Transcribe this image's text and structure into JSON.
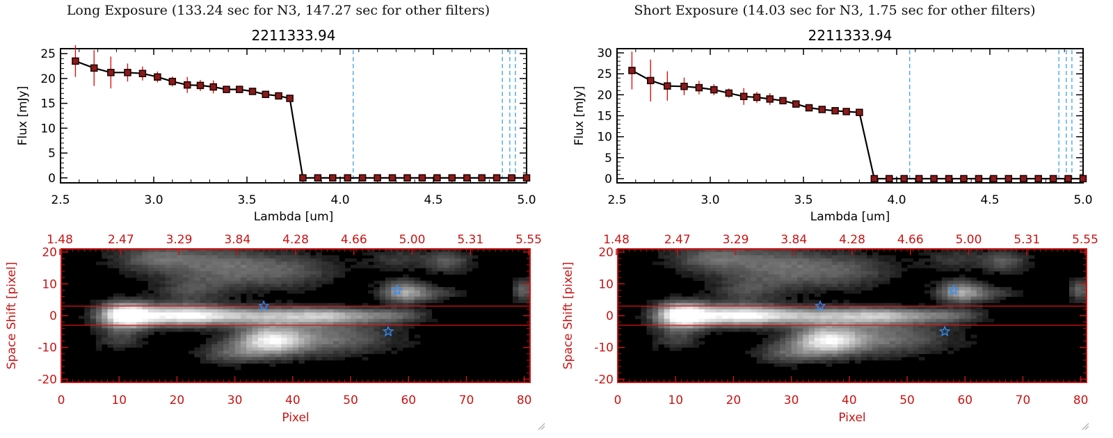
{
  "colors": {
    "axis_black": "#000000",
    "flux_marker": "#1a0000",
    "flux_fill": "#8b1a1a",
    "error_bar": "#e00000",
    "line_marker_blue": "#3aa0e8",
    "spectrum_axis_red": "#c81414",
    "star_blue": "#2f8fff",
    "image_bg": "#000000"
  },
  "chart_data": [
    {
      "type": "line",
      "panel": "left",
      "exposure_title": "Long Exposure (133.24 sec for N3, 147.27 sec for other filters)",
      "title": "2211333.94",
      "xlabel": "Lambda [um]",
      "ylabel": "Flux [mJy]",
      "xlim": [
        2.5,
        5.0
      ],
      "ylim": [
        -1,
        26
      ],
      "xticks": [
        2.5,
        3.0,
        3.5,
        4.0,
        4.5,
        5.0
      ],
      "xtick_labels": [
        "2.5",
        "3.0",
        "3.5",
        "4.0",
        "4.5",
        "5.0"
      ],
      "yticks": [
        0,
        5,
        10,
        15,
        20,
        25
      ],
      "ytick_labels": [
        "0",
        "5",
        "10",
        "15",
        "20",
        "25"
      ],
      "series": [
        {
          "name": "flux",
          "x": [
            2.58,
            2.68,
            2.77,
            2.86,
            2.94,
            3.02,
            3.1,
            3.18,
            3.25,
            3.32,
            3.39,
            3.46,
            3.53,
            3.6,
            3.67,
            3.73,
            3.8,
            3.88,
            3.96,
            4.04,
            4.12,
            4.2,
            4.28,
            4.36,
            4.44,
            4.52,
            4.6,
            4.68,
            4.76,
            4.84,
            4.92,
            5.0
          ],
          "y": [
            23.5,
            22.1,
            21.2,
            21.2,
            21.0,
            20.3,
            19.4,
            18.7,
            18.6,
            18.3,
            17.8,
            17.8,
            17.4,
            16.8,
            16.5,
            16.0,
            0,
            0,
            0,
            0,
            0,
            0,
            0,
            0,
            0,
            0,
            0,
            0,
            0,
            0,
            0,
            0
          ],
          "yerr": [
            3.2,
            3.6,
            3.2,
            1.8,
            1.4,
            1.1,
            1.0,
            1.6,
            1.1,
            1.3,
            0.7,
            0.5,
            0.4,
            0.4,
            0.3,
            0.3,
            0,
            0,
            0,
            0,
            0,
            0,
            0,
            0,
            0,
            0,
            0,
            0,
            0,
            0,
            0,
            0
          ]
        }
      ],
      "line_markers": [
        4.07,
        4.87,
        4.91,
        4.94
      ]
    },
    {
      "type": "heatmap",
      "panel": "left",
      "xlabel": "Pixel",
      "ylabel": "Space Shift [pixel]",
      "xlim": [
        0,
        81
      ],
      "ylim": [
        -21,
        21
      ],
      "xticks": [
        0,
        10,
        20,
        30,
        40,
        50,
        60,
        70,
        80
      ],
      "xtick_labels": [
        "0",
        "10",
        "20",
        "30",
        "40",
        "50",
        "60",
        "70",
        "80"
      ],
      "yticks": [
        -20,
        -10,
        0,
        10,
        20
      ],
      "ytick_labels": [
        "-20",
        "-10",
        "0",
        "10",
        "20"
      ],
      "top_axis_labels": [
        "1.48",
        "2.47",
        "3.29",
        "3.84",
        "4.28",
        "4.66",
        "5.00",
        "5.31",
        "5.55"
      ],
      "extraction_window": [
        -3,
        3
      ],
      "stars": [
        {
          "x": 35,
          "y": 3
        },
        {
          "x": 58,
          "y": 8
        },
        {
          "x": 56.5,
          "y": -5
        }
      ]
    },
    {
      "type": "line",
      "panel": "right",
      "exposure_title": "Short Exposure (14.03 sec for N3, 1.75 sec for other filters)",
      "title": "2211333.94",
      "xlabel": "Lambda [um]",
      "ylabel": "Flux [mJy]",
      "xlim": [
        2.5,
        5.0
      ],
      "ylim": [
        -1,
        31
      ],
      "xticks": [
        2.5,
        3.0,
        3.5,
        4.0,
        4.5,
        5.0
      ],
      "xtick_labels": [
        "2.5",
        "3.0",
        "3.5",
        "4.0",
        "4.5",
        "5.0"
      ],
      "yticks": [
        0,
        5,
        10,
        15,
        20,
        25,
        30
      ],
      "ytick_labels": [
        "0",
        "5",
        "10",
        "15",
        "20",
        "25",
        "30"
      ],
      "series": [
        {
          "name": "flux",
          "x": [
            2.58,
            2.68,
            2.77,
            2.86,
            2.94,
            3.02,
            3.1,
            3.18,
            3.25,
            3.32,
            3.39,
            3.46,
            3.53,
            3.6,
            3.67,
            3.73,
            3.8,
            3.88,
            3.96,
            4.04,
            4.12,
            4.2,
            4.28,
            4.36,
            4.44,
            4.52,
            4.6,
            4.68,
            4.76,
            4.84,
            4.92,
            5.0
          ],
          "y": [
            25.8,
            23.4,
            22.1,
            22.0,
            21.7,
            21.2,
            20.4,
            19.6,
            19.4,
            19.0,
            18.6,
            17.8,
            16.9,
            16.5,
            16.2,
            16.0,
            15.8,
            0,
            0,
            0,
            0,
            0,
            0,
            0,
            0,
            0,
            0,
            0,
            0,
            0,
            0,
            0
          ],
          "yerr": [
            4.5,
            5.0,
            3.5,
            2.1,
            1.6,
            1.3,
            1.1,
            2.0,
            1.3,
            1.4,
            0.8,
            0.6,
            0.5,
            0.4,
            0.3,
            0.3,
            0.3,
            0,
            0,
            0,
            0,
            0,
            0,
            0,
            0,
            0,
            0,
            0,
            0,
            0,
            0,
            0
          ]
        }
      ],
      "line_markers": [
        4.07,
        4.87,
        4.91,
        4.94
      ]
    },
    {
      "type": "heatmap",
      "panel": "right",
      "xlabel": "Pixel",
      "ylabel": "Space Shift [pixel]",
      "xlim": [
        0,
        81
      ],
      "ylim": [
        -21,
        21
      ],
      "xticks": [
        0,
        10,
        20,
        30,
        40,
        50,
        60,
        70,
        80
      ],
      "xtick_labels": [
        "0",
        "10",
        "20",
        "30",
        "40",
        "50",
        "60",
        "70",
        "80"
      ],
      "yticks": [
        -20,
        -10,
        0,
        10,
        20
      ],
      "ytick_labels": [
        "-20",
        "-10",
        "0",
        "10",
        "20"
      ],
      "top_axis_labels": [
        "1.48",
        "2.47",
        "3.29",
        "3.84",
        "4.28",
        "4.66",
        "5.00",
        "5.31",
        "5.55"
      ],
      "extraction_window": [
        -3,
        3
      ],
      "stars": [
        {
          "x": 35,
          "y": 3
        },
        {
          "x": 58,
          "y": 8
        },
        {
          "x": 56.5,
          "y": -5
        }
      ]
    }
  ]
}
